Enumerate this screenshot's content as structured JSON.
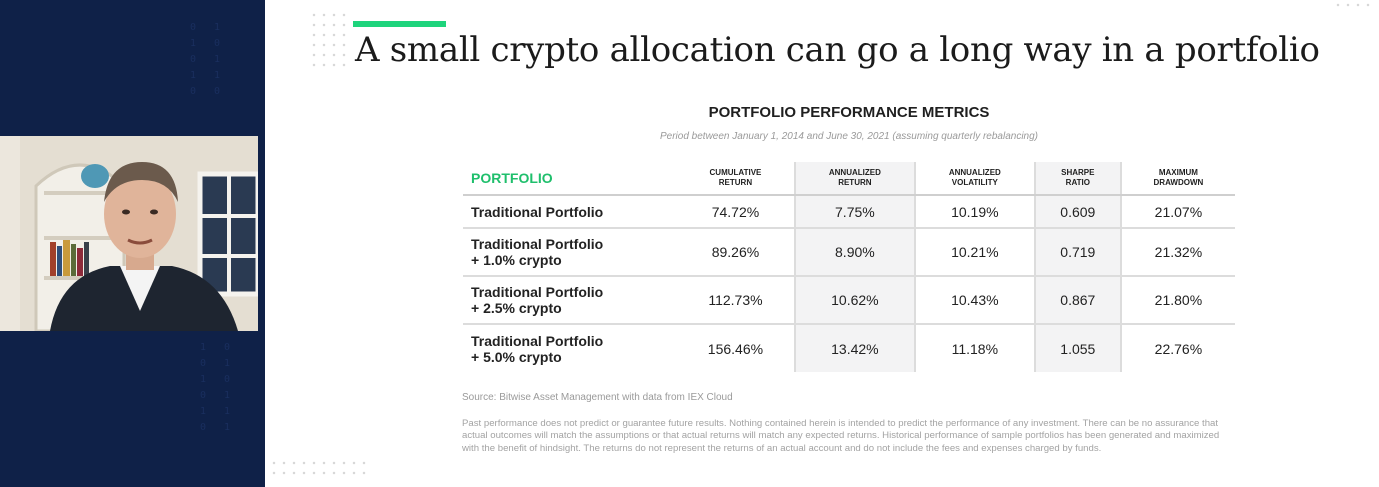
{
  "colors": {
    "left_panel": "#0f2148",
    "accent": "#1ed47c",
    "portfolio_label": "#1fbf6c"
  },
  "slide": {
    "title": "A small crypto allocation can go a long way in a portfolio",
    "table_title": "PORTFOLIO PERFORMANCE METRICS",
    "table_subtitle": "Period between January 1, 2014 and June 30, 2021 (assuming quarterly rebalancing)",
    "source": "Source: Bitwise Asset Management with data from IEX Cloud",
    "disclaimer": "Past performance does not predict or guarantee future results. Nothing contained herein is intended to predict the performance of any investment. There can be no assurance that actual outcomes will match the assumptions or that actual returns will match any expected returns.  Historical performance of sample portfolios has been generated and maximized with the benefit of hindsight. The returns do not represent the returns of an actual account and do not include the fees and expenses charged by funds."
  },
  "table": {
    "headers": {
      "portfolio": "PORTFOLIO",
      "cumulative": [
        "CUMULATIVE",
        "RETURN"
      ],
      "annualized_return": [
        "ANNUALIZED",
        "RETURN"
      ],
      "annualized_volatility": [
        "ANNUALIZED",
        "VOLATILITY"
      ],
      "sharpe": [
        "SHARPE",
        "RATIO"
      ],
      "drawdown": [
        "MAXIMUM",
        "DRAWDOWN"
      ]
    },
    "rows": [
      {
        "name": [
          "Traditional Portfolio"
        ],
        "cumulative": "74.72%",
        "annualized_return": "7.75%",
        "volatility": "10.19%",
        "sharpe": "0.609",
        "drawdown": "21.07%"
      },
      {
        "name": [
          "Traditional Portfolio",
          "+ 1.0% crypto"
        ],
        "cumulative": "89.26%",
        "annualized_return": "8.90%",
        "volatility": "10.21%",
        "sharpe": "0.719",
        "drawdown": "21.32%"
      },
      {
        "name": [
          "Traditional Portfolio",
          "+ 2.5% crypto"
        ],
        "cumulative": "112.73%",
        "annualized_return": "10.62%",
        "volatility": "10.43%",
        "sharpe": "0.867",
        "drawdown": "21.80%"
      },
      {
        "name": [
          "Traditional Portfolio",
          "+ 5.0% crypto"
        ],
        "cumulative": "156.46%",
        "annualized_return": "13.42%",
        "volatility": "11.18%",
        "sharpe": "1.055",
        "drawdown": "22.76%"
      }
    ]
  },
  "video": {
    "icon": "presenter-video-icon"
  }
}
